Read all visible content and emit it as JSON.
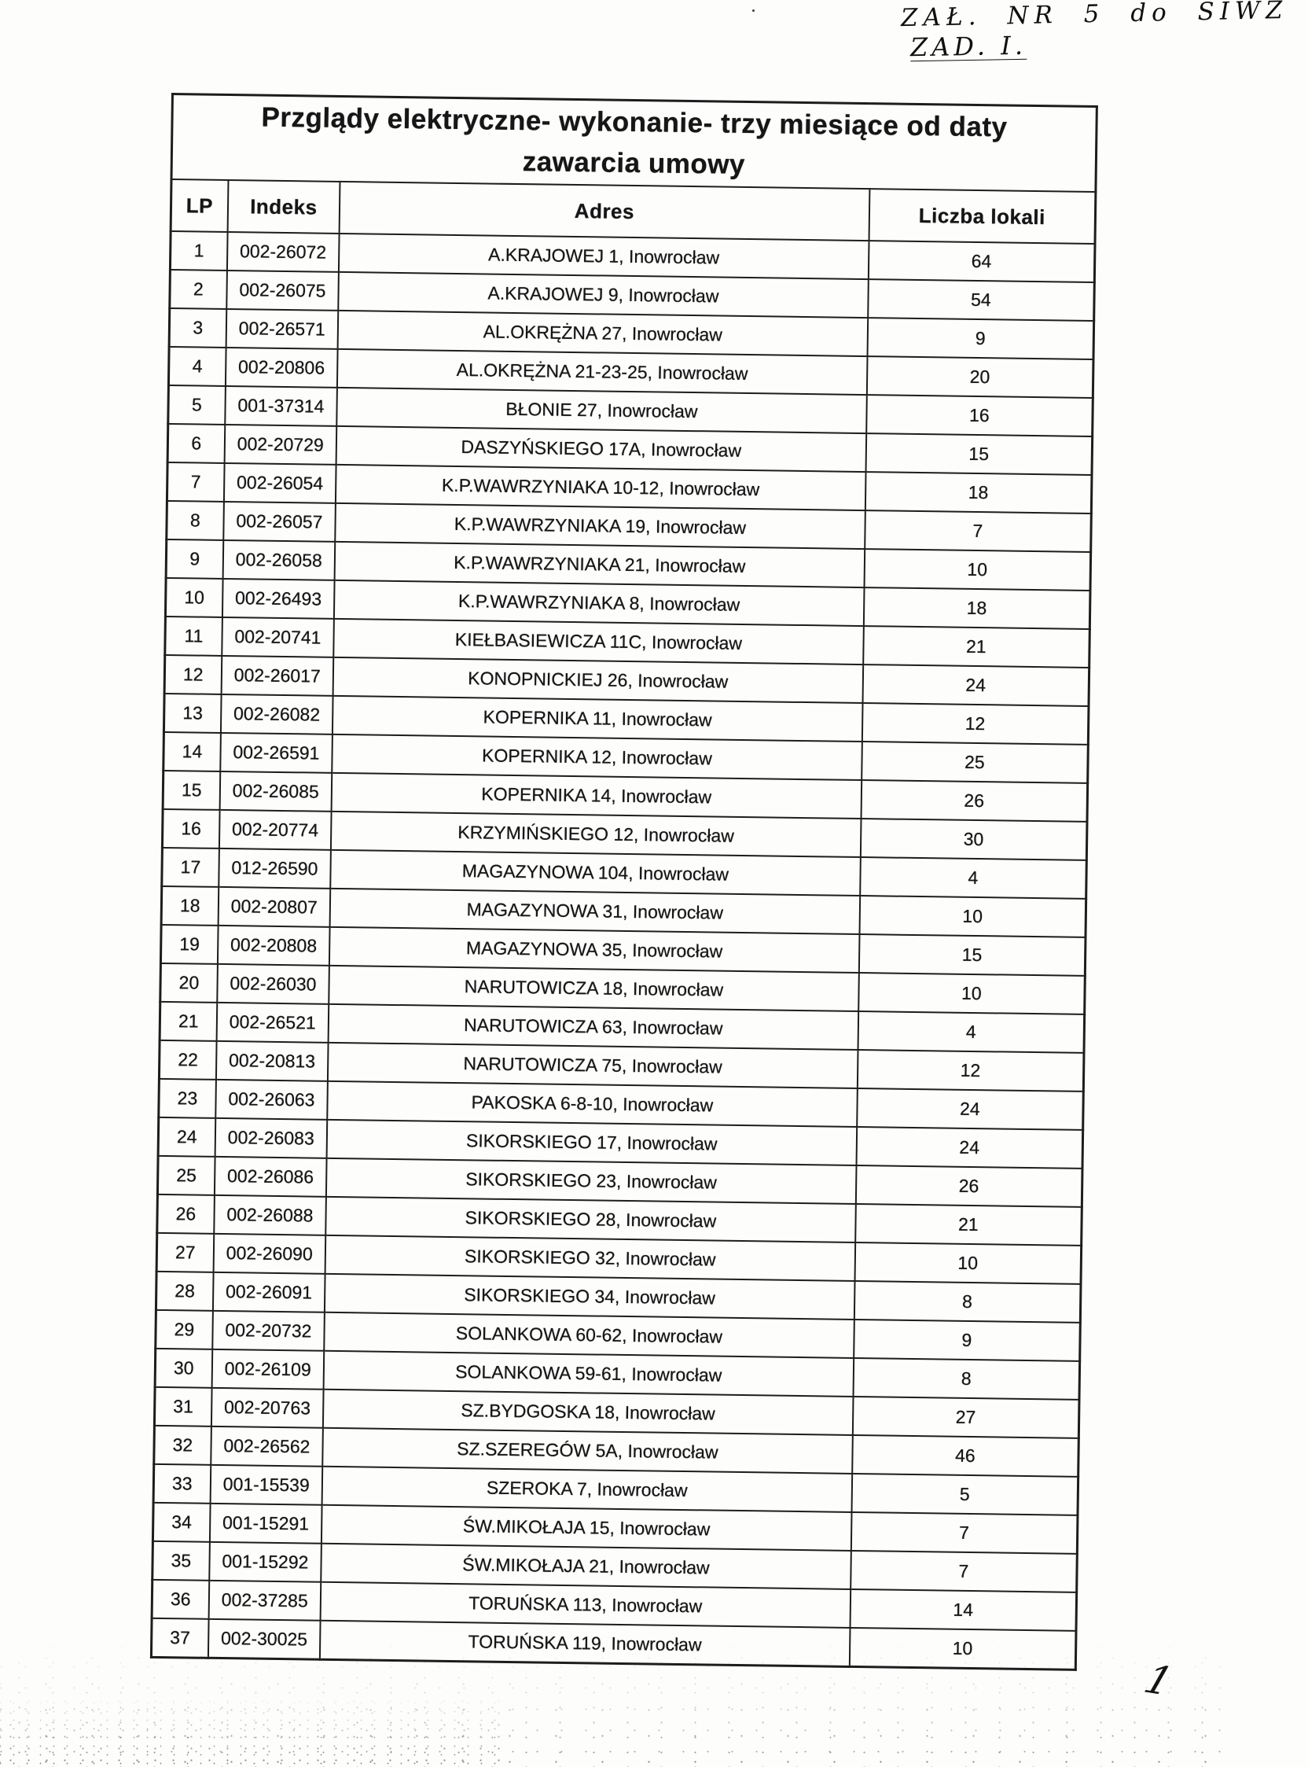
{
  "annotations": {
    "top_right_line1": "ZAŁ. NR 5 do SIWZ",
    "top_right_line2": "ZAD. I.",
    "page_number": "1"
  },
  "table": {
    "title_line1": "Przglądy elektryczne- wykonanie- trzy miesiące od daty",
    "title_line2": "zawarcia umowy",
    "columns": [
      "LP",
      "Indeks",
      "Adres",
      "Liczba lokali"
    ],
    "rows": [
      {
        "lp": "1",
        "indeks": "002-26072",
        "adres": "A.KRAJOWEJ 1, Inowrocław",
        "liczba_lokali": "64"
      },
      {
        "lp": "2",
        "indeks": "002-26075",
        "adres": "A.KRAJOWEJ 9, Inowrocław",
        "liczba_lokali": "54"
      },
      {
        "lp": "3",
        "indeks": "002-26571",
        "adres": "AL.OKRĘŻNA 27, Inowrocław",
        "liczba_lokali": "9"
      },
      {
        "lp": "4",
        "indeks": "002-20806",
        "adres": "AL.OKRĘŻNA 21-23-25, Inowrocław",
        "liczba_lokali": "20"
      },
      {
        "lp": "5",
        "indeks": "001-37314",
        "adres": "BŁONIE 27, Inowrocław",
        "liczba_lokali": "16"
      },
      {
        "lp": "6",
        "indeks": "002-20729",
        "adres": "DASZYŃSKIEGO 17A, Inowrocław",
        "liczba_lokali": "15"
      },
      {
        "lp": "7",
        "indeks": "002-26054",
        "adres": "K.P.WAWRZYNIAKA 10-12, Inowrocław",
        "liczba_lokali": "18"
      },
      {
        "lp": "8",
        "indeks": "002-26057",
        "adres": "K.P.WAWRZYNIAKA 19, Inowrocław",
        "liczba_lokali": "7"
      },
      {
        "lp": "9",
        "indeks": "002-26058",
        "adres": "K.P.WAWRZYNIAKA 21, Inowrocław",
        "liczba_lokali": "10"
      },
      {
        "lp": "10",
        "indeks": "002-26493",
        "adres": "K.P.WAWRZYNIAKA 8, Inowrocław",
        "liczba_lokali": "18"
      },
      {
        "lp": "11",
        "indeks": "002-20741",
        "adres": "KIEŁBASIEWICZA 11C, Inowrocław",
        "liczba_lokali": "21"
      },
      {
        "lp": "12",
        "indeks": "002-26017",
        "adres": "KONOPNICKIEJ 26, Inowrocław",
        "liczba_lokali": "24"
      },
      {
        "lp": "13",
        "indeks": "002-26082",
        "adres": "KOPERNIKA 11, Inowrocław",
        "liczba_lokali": "12"
      },
      {
        "lp": "14",
        "indeks": "002-26591",
        "adres": "KOPERNIKA 12, Inowrocław",
        "liczba_lokali": "25"
      },
      {
        "lp": "15",
        "indeks": "002-26085",
        "adres": "KOPERNIKA 14, Inowrocław",
        "liczba_lokali": "26"
      },
      {
        "lp": "16",
        "indeks": "002-20774",
        "adres": "KRZYMIŃSKIEGO 12, Inowrocław",
        "liczba_lokali": "30"
      },
      {
        "lp": "17",
        "indeks": "012-26590",
        "adres": "MAGAZYNOWA 104, Inowrocław",
        "liczba_lokali": "4"
      },
      {
        "lp": "18",
        "indeks": "002-20807",
        "adres": "MAGAZYNOWA 31, Inowrocław",
        "liczba_lokali": "10"
      },
      {
        "lp": "19",
        "indeks": "002-20808",
        "adres": "MAGAZYNOWA 35, Inowrocław",
        "liczba_lokali": "15"
      },
      {
        "lp": "20",
        "indeks": "002-26030",
        "adres": "NARUTOWICZA 18, Inowrocław",
        "liczba_lokali": "10"
      },
      {
        "lp": "21",
        "indeks": "002-26521",
        "adres": "NARUTOWICZA 63, Inowrocław",
        "liczba_lokali": "4"
      },
      {
        "lp": "22",
        "indeks": "002-20813",
        "adres": "NARUTOWICZA 75, Inowrocław",
        "liczba_lokali": "12"
      },
      {
        "lp": "23",
        "indeks": "002-26063",
        "adres": "PAKOSKA 6-8-10, Inowrocław",
        "liczba_lokali": "24"
      },
      {
        "lp": "24",
        "indeks": "002-26083",
        "adres": "SIKORSKIEGO 17, Inowrocław",
        "liczba_lokali": "24"
      },
      {
        "lp": "25",
        "indeks": "002-26086",
        "adres": "SIKORSKIEGO 23, Inowrocław",
        "liczba_lokali": "26"
      },
      {
        "lp": "26",
        "indeks": "002-26088",
        "adres": "SIKORSKIEGO 28, Inowrocław",
        "liczba_lokali": "21"
      },
      {
        "lp": "27",
        "indeks": "002-26090",
        "adres": "SIKORSKIEGO 32, Inowrocław",
        "liczba_lokali": "10"
      },
      {
        "lp": "28",
        "indeks": "002-26091",
        "adres": "SIKORSKIEGO 34, Inowrocław",
        "liczba_lokali": "8"
      },
      {
        "lp": "29",
        "indeks": "002-20732",
        "adres": "SOLANKOWA 60-62, Inowrocław",
        "liczba_lokali": "9"
      },
      {
        "lp": "30",
        "indeks": "002-26109",
        "adres": "SOLANKOWA 59-61, Inowrocław",
        "liczba_lokali": "8"
      },
      {
        "lp": "31",
        "indeks": "002-20763",
        "adres": "SZ.BYDGOSKA 18, Inowrocław",
        "liczba_lokali": "27"
      },
      {
        "lp": "32",
        "indeks": "002-26562",
        "adres": "SZ.SZEREGÓW 5A, Inowrocław",
        "liczba_lokali": "46"
      },
      {
        "lp": "33",
        "indeks": "001-15539",
        "adres": "SZEROKA 7, Inowrocław",
        "liczba_lokali": "5"
      },
      {
        "lp": "34",
        "indeks": "001-15291",
        "adres": "ŚW.MIKOŁAJA 15, Inowrocław",
        "liczba_lokali": "7"
      },
      {
        "lp": "35",
        "indeks": "001-15292",
        "adres": "ŚW.MIKOŁAJA 21, Inowrocław",
        "liczba_lokali": "7"
      },
      {
        "lp": "36",
        "indeks": "002-37285",
        "adres": "TORUŃSKA 113, Inowrocław",
        "liczba_lokali": "14"
      },
      {
        "lp": "37",
        "indeks": "002-30025",
        "adres": "TORUŃSKA 119, Inowrocław",
        "liczba_lokali": "10"
      }
    ]
  }
}
